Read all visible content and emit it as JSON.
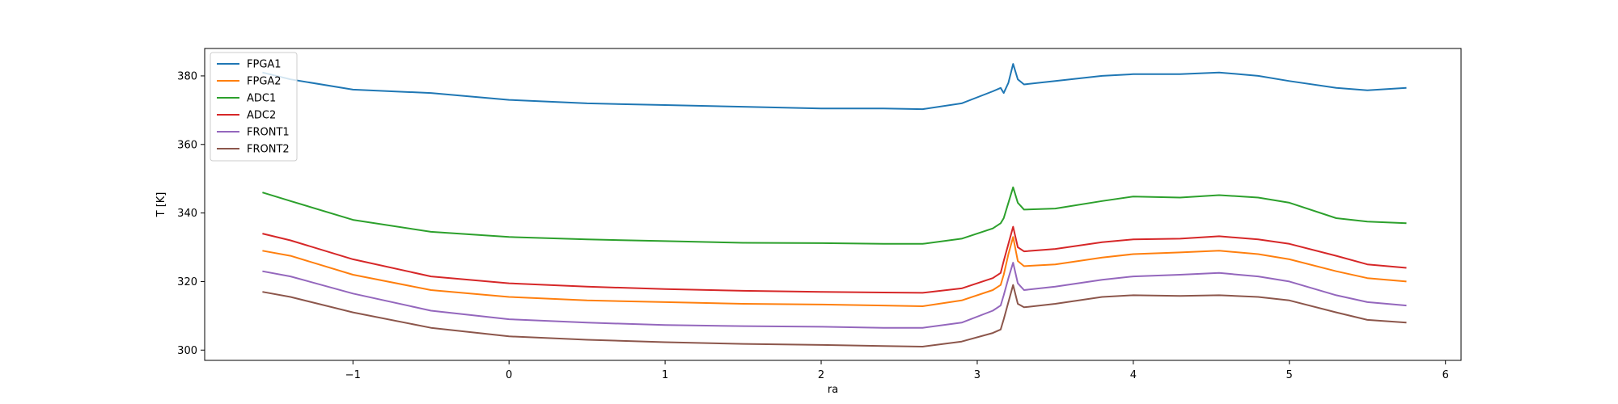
{
  "chart_data": {
    "type": "line",
    "title": "",
    "xlabel": "ra",
    "ylabel": "T [K]",
    "xlim": [
      -1.95,
      6.1
    ],
    "ylim": [
      297,
      388
    ],
    "xticks": [
      -1,
      0,
      1,
      2,
      3,
      4,
      5,
      6
    ],
    "xtick_labels": [
      "−1",
      "0",
      "1",
      "2",
      "3",
      "4",
      "5",
      "6"
    ],
    "yticks": [
      300,
      320,
      340,
      360,
      380
    ],
    "ytick_labels": [
      "300",
      "320",
      "340",
      "360",
      "380"
    ],
    "grid": false,
    "legend_position": "top-left",
    "series": [
      {
        "name": "FPGA1",
        "color": "#1f77b4",
        "x": [
          -1.58,
          -1.4,
          -1.0,
          -0.5,
          0.0,
          0.5,
          1.0,
          1.5,
          2.0,
          2.4,
          2.65,
          2.9,
          3.1,
          3.15,
          3.17,
          3.2,
          3.23,
          3.26,
          3.3,
          3.5,
          3.8,
          4.0,
          4.3,
          4.55,
          4.8,
          5.0,
          5.3,
          5.5,
          5.75
        ],
        "y": [
          381.0,
          379.0,
          376.0,
          375.0,
          373.0,
          372.0,
          371.5,
          371.0,
          370.5,
          370.5,
          370.3,
          372.0,
          375.5,
          376.5,
          375.0,
          378.0,
          383.5,
          379.0,
          377.5,
          378.5,
          380.0,
          380.5,
          380.5,
          381.0,
          380.0,
          378.5,
          376.5,
          375.8,
          376.5
        ]
      },
      {
        "name": "FPGA2",
        "color": "#ff7f0e",
        "x": [
          -1.58,
          -1.4,
          -1.0,
          -0.5,
          0.0,
          0.5,
          1.0,
          1.5,
          2.0,
          2.4,
          2.65,
          2.9,
          3.1,
          3.15,
          3.17,
          3.2,
          3.23,
          3.26,
          3.3,
          3.5,
          3.8,
          4.0,
          4.3,
          4.55,
          4.8,
          5.0,
          5.3,
          5.5,
          5.75
        ],
        "y": [
          329.0,
          327.5,
          322.0,
          317.5,
          315.5,
          314.5,
          314.0,
          313.5,
          313.3,
          313.0,
          312.8,
          314.5,
          317.5,
          319.0,
          322.0,
          328.0,
          333.0,
          326.0,
          324.5,
          325.0,
          327.0,
          328.0,
          328.5,
          329.0,
          328.0,
          326.5,
          323.0,
          321.0,
          320.0
        ]
      },
      {
        "name": "ADC1",
        "color": "#2ca02c",
        "x": [
          -1.58,
          -1.4,
          -1.0,
          -0.5,
          0.0,
          0.5,
          1.0,
          1.5,
          2.0,
          2.4,
          2.65,
          2.9,
          3.1,
          3.15,
          3.17,
          3.2,
          3.23,
          3.26,
          3.3,
          3.5,
          3.8,
          4.0,
          4.3,
          4.55,
          4.8,
          5.0,
          5.3,
          5.5,
          5.75
        ],
        "y": [
          346.0,
          343.5,
          338.0,
          334.5,
          333.0,
          332.3,
          331.8,
          331.3,
          331.2,
          331.0,
          331.0,
          332.5,
          335.5,
          337.0,
          338.5,
          343.0,
          347.5,
          343.0,
          341.0,
          341.3,
          343.5,
          344.8,
          344.5,
          345.2,
          344.5,
          343.0,
          338.5,
          337.5,
          337.0
        ]
      },
      {
        "name": "ADC2",
        "color": "#d62728",
        "x": [
          -1.58,
          -1.4,
          -1.0,
          -0.5,
          0.0,
          0.5,
          1.0,
          1.5,
          2.0,
          2.4,
          2.65,
          2.9,
          3.1,
          3.15,
          3.17,
          3.2,
          3.23,
          3.26,
          3.3,
          3.5,
          3.8,
          4.0,
          4.3,
          4.55,
          4.8,
          5.0,
          5.3,
          5.5,
          5.75
        ],
        "y": [
          334.0,
          332.0,
          326.5,
          321.5,
          319.5,
          318.5,
          317.8,
          317.3,
          317.0,
          316.8,
          316.7,
          318.0,
          321.0,
          322.5,
          326.0,
          331.0,
          336.0,
          330.0,
          328.8,
          329.5,
          331.5,
          332.3,
          332.5,
          333.2,
          332.3,
          331.0,
          327.5,
          325.0,
          324.0
        ]
      },
      {
        "name": "FRONT1",
        "color": "#9467bd",
        "x": [
          -1.58,
          -1.4,
          -1.0,
          -0.5,
          0.0,
          0.5,
          1.0,
          1.5,
          2.0,
          2.4,
          2.65,
          2.9,
          3.1,
          3.15,
          3.17,
          3.2,
          3.23,
          3.26,
          3.3,
          3.5,
          3.8,
          4.0,
          4.3,
          4.55,
          4.8,
          5.0,
          5.3,
          5.5,
          5.75
        ],
        "y": [
          323.0,
          321.5,
          316.5,
          311.5,
          309.0,
          308.0,
          307.3,
          307.0,
          306.8,
          306.5,
          306.5,
          308.0,
          311.5,
          313.0,
          316.0,
          321.0,
          325.5,
          319.5,
          317.5,
          318.5,
          320.5,
          321.5,
          322.0,
          322.5,
          321.5,
          320.0,
          316.0,
          314.0,
          313.0
        ]
      },
      {
        "name": "FRONT2",
        "color": "#8c564b",
        "x": [
          -1.58,
          -1.4,
          -1.0,
          -0.5,
          0.0,
          0.5,
          1.0,
          1.5,
          2.0,
          2.4,
          2.65,
          2.9,
          3.1,
          3.15,
          3.17,
          3.2,
          3.23,
          3.26,
          3.3,
          3.5,
          3.8,
          4.0,
          4.3,
          4.55,
          4.8,
          5.0,
          5.3,
          5.5,
          5.75
        ],
        "y": [
          317.0,
          315.5,
          311.0,
          306.5,
          304.0,
          303.0,
          302.3,
          301.8,
          301.5,
          301.2,
          301.0,
          302.5,
          305.0,
          306.0,
          309.0,
          314.0,
          319.0,
          313.5,
          312.5,
          313.5,
          315.5,
          316.0,
          315.8,
          316.0,
          315.5,
          314.5,
          311.0,
          308.8,
          308.0
        ]
      }
    ]
  }
}
